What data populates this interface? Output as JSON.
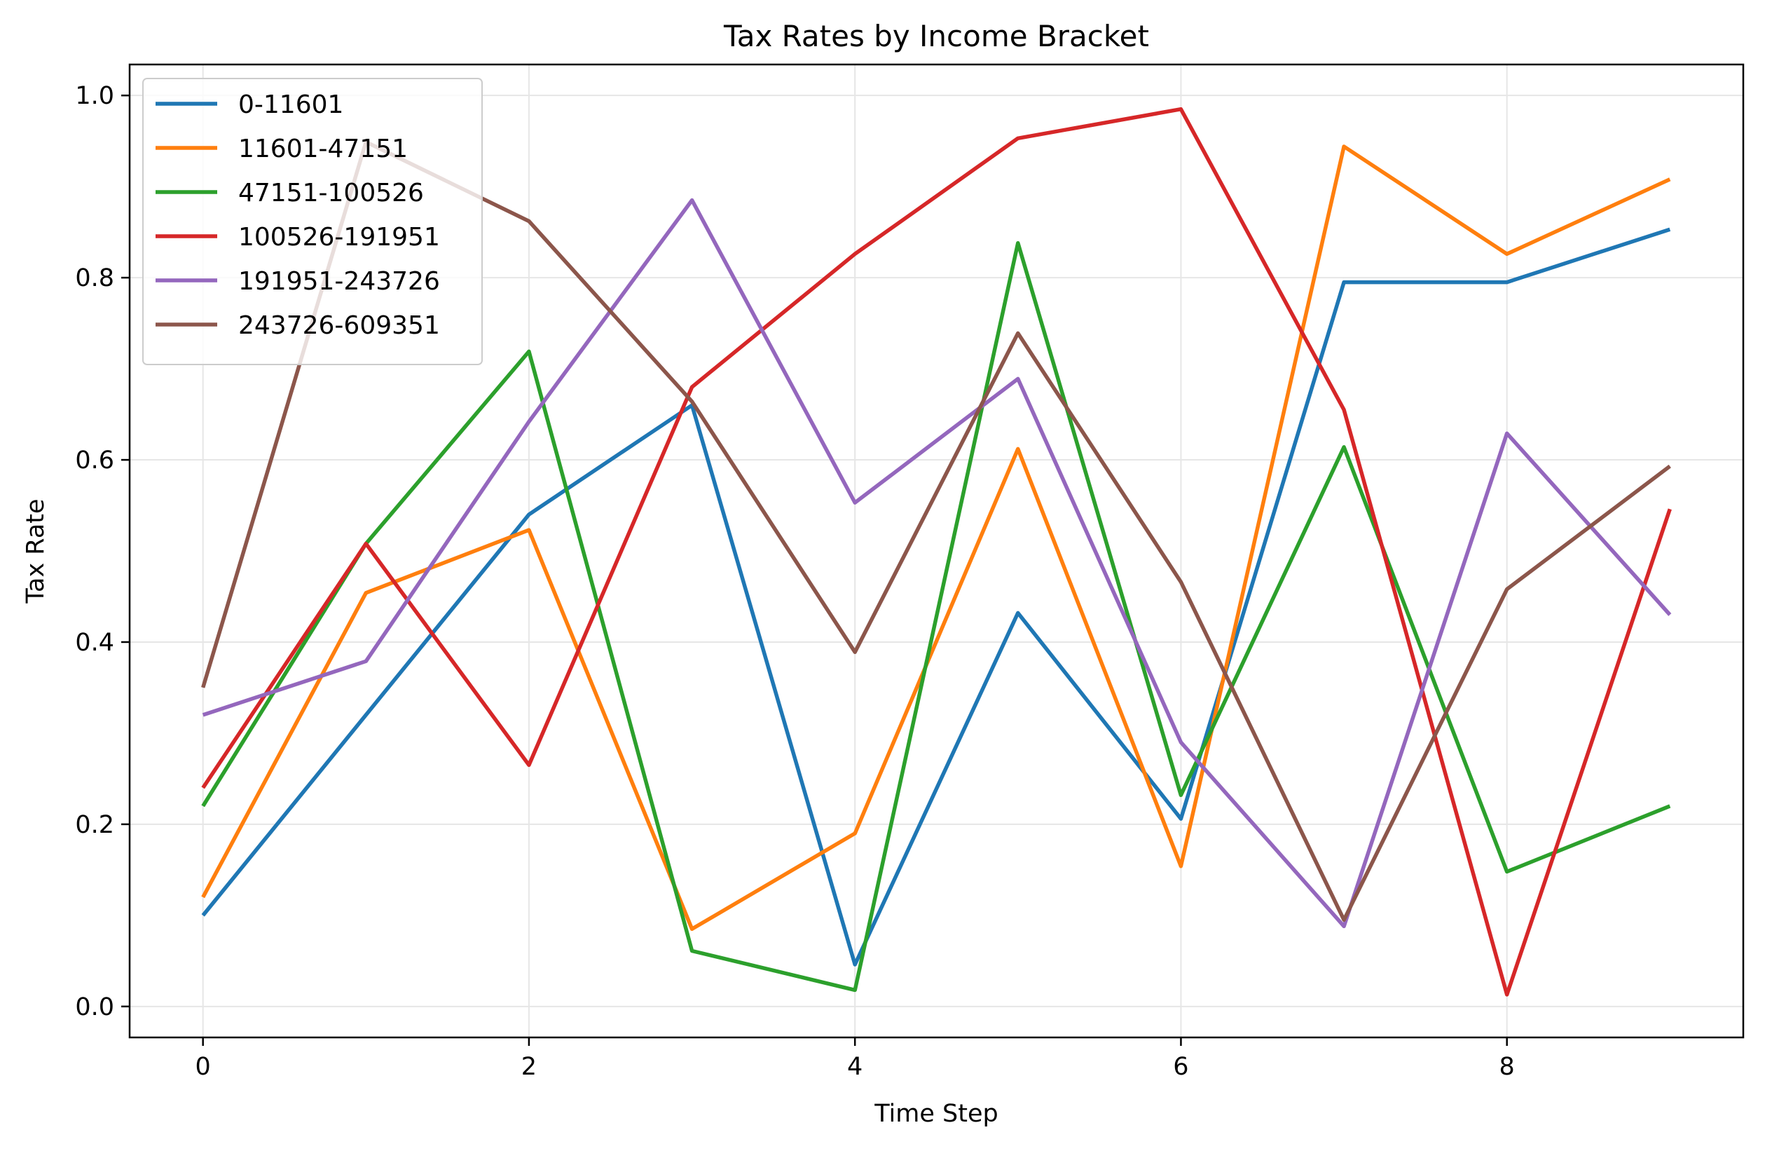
{
  "chart_data": {
    "type": "line",
    "title": "Tax Rates by Income Bracket",
    "xlabel": "Time Step",
    "ylabel": "Tax Rate",
    "x": [
      0,
      1,
      2,
      3,
      4,
      5,
      6,
      7,
      8,
      9
    ],
    "xlim": [
      -0.45,
      9.45
    ],
    "ylim": [
      -0.034,
      1.034
    ],
    "xticks": [
      0,
      2,
      4,
      6,
      8
    ],
    "xtick_labels": [
      "0",
      "2",
      "4",
      "6",
      "8"
    ],
    "yticks": [
      0.0,
      0.2,
      0.4,
      0.6,
      0.8,
      1.0
    ],
    "ytick_labels": [
      "0.0",
      "0.2",
      "0.4",
      "0.6",
      "0.8",
      "1.0"
    ],
    "grid": true,
    "legend_position": "top-left",
    "series": [
      {
        "name": "0-11601",
        "color": "#1f77b4",
        "values": [
          0.1,
          0.32,
          0.54,
          0.66,
          0.046,
          0.432,
          0.206,
          0.795,
          0.795,
          0.853
        ]
      },
      {
        "name": "11601-47151",
        "color": "#ff7f0e",
        "values": [
          0.12,
          0.454,
          0.523,
          0.085,
          0.19,
          0.612,
          0.154,
          0.944,
          0.826,
          0.908
        ]
      },
      {
        "name": "47151-100526",
        "color": "#2ca02c",
        "values": [
          0.22,
          0.508,
          0.719,
          0.061,
          0.018,
          0.838,
          0.232,
          0.614,
          0.148,
          0.22
        ]
      },
      {
        "name": "100526-191951",
        "color": "#d62728",
        "values": [
          0.24,
          0.508,
          0.265,
          0.68,
          0.826,
          0.953,
          0.985,
          0.655,
          0.013,
          0.546
        ]
      },
      {
        "name": "191951-243726",
        "color": "#9467bd",
        "values": [
          0.32,
          0.379,
          0.642,
          0.885,
          0.553,
          0.689,
          0.29,
          0.088,
          0.629,
          0.43
        ]
      },
      {
        "name": "243726-609351",
        "color": "#8c564b",
        "values": [
          0.35,
          0.949,
          0.862,
          0.664,
          0.389,
          0.739,
          0.466,
          0.095,
          0.458,
          0.593
        ]
      }
    ]
  }
}
